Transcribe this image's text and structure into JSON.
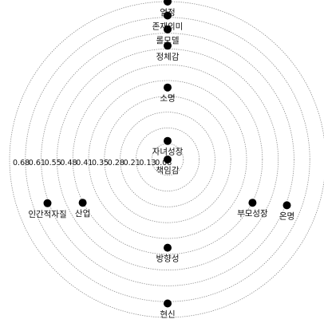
{
  "chart_data": {
    "type": "scatter",
    "plot": "polar",
    "grid": true,
    "r_tick_labels": [
      "0.08",
      "0.13",
      "0.21",
      "0.28",
      "0.35",
      "0.41",
      "0.48",
      "0.55",
      "0.61",
      "0.68"
    ],
    "rlim": [
      0.0,
      0.68
    ],
    "points": [
      {
        "label": "열정",
        "theta_deg": 90.0,
        "r": 0.68
      },
      {
        "label": "존재의미",
        "theta_deg": 90.0,
        "r": 0.62
      },
      {
        "label": "롤모델",
        "theta_deg": 90.0,
        "r": 0.56
      },
      {
        "label": "정체감",
        "theta_deg": 90.0,
        "r": 0.49
      },
      {
        "label": "소명",
        "theta_deg": 90.0,
        "r": 0.31
      },
      {
        "label": "자녀성장",
        "theta_deg": 90.0,
        "r": 0.08
      },
      {
        "label": "책임감",
        "theta_deg": 0.0,
        "r": 0.0
      },
      {
        "label": "산업",
        "theta_deg": 207.0,
        "r": 0.41
      },
      {
        "label": "인간적자질",
        "theta_deg": 200.0,
        "r": 0.55
      },
      {
        "label": "방향성",
        "theta_deg": 270.0,
        "r": 0.38
      },
      {
        "label": "현신",
        "theta_deg": 270.0,
        "r": 0.62
      },
      {
        "label": "부모성장",
        "theta_deg": 333.0,
        "r": 0.41
      },
      {
        "label": "온명",
        "theta_deg": 339.0,
        "r": 0.55
      }
    ]
  }
}
